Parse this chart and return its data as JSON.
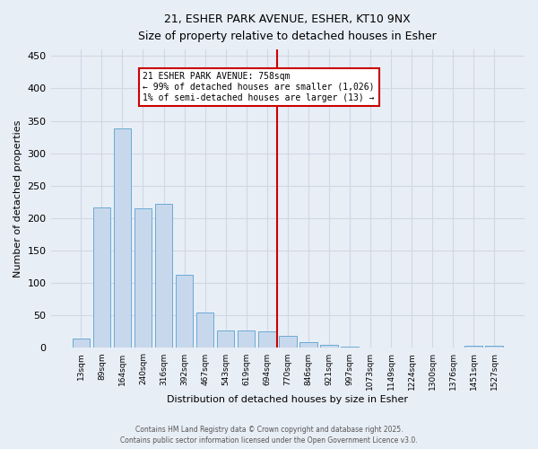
{
  "title_line1": "21, ESHER PARK AVENUE, ESHER, KT10 9NX",
  "title_line2": "Size of property relative to detached houses in Esher",
  "xlabel": "Distribution of detached houses by size in Esher",
  "ylabel": "Number of detached properties",
  "bar_color": "#c8d8ec",
  "bar_edge_color": "#6aaad4",
  "background_color": "#e8eef6",
  "grid_color": "#d0d8e4",
  "vline_color": "#cc0000",
  "annotation_title": "21 ESHER PARK AVENUE: 758sqm",
  "annotation_line2": "← 99% of detached houses are smaller (1,026)",
  "annotation_line3": "1% of semi-detached houses are larger (13) →",
  "annotation_box_color": "#cc0000",
  "categories": [
    "13sqm",
    "89sqm",
    "164sqm",
    "240sqm",
    "316sqm",
    "392sqm",
    "467sqm",
    "543sqm",
    "619sqm",
    "694sqm",
    "770sqm",
    "846sqm",
    "921sqm",
    "997sqm",
    "1073sqm",
    "1149sqm",
    "1224sqm",
    "1300sqm",
    "1376sqm",
    "1451sqm",
    "1527sqm"
  ],
  "values": [
    15,
    216,
    338,
    215,
    222,
    113,
    54,
    27,
    27,
    25,
    18,
    9,
    5,
    2,
    1,
    1,
    1,
    1,
    0,
    3,
    4
  ],
  "vline_index": 10,
  "ylim": [
    0,
    460
  ],
  "yticks": [
    0,
    50,
    100,
    150,
    200,
    250,
    300,
    350,
    400,
    450
  ],
  "footer_line1": "Contains HM Land Registry data © Crown copyright and database right 2025.",
  "footer_line2": "Contains public sector information licensed under the Open Government Licence v3.0."
}
